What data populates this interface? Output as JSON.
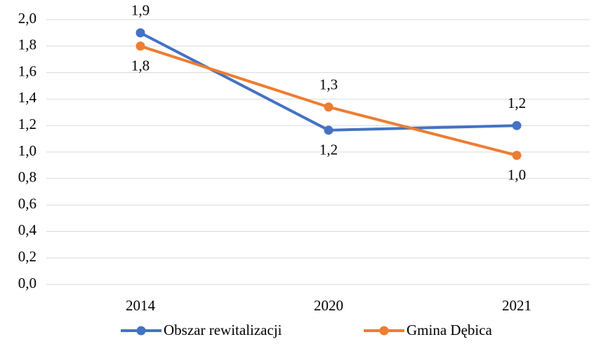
{
  "chart_data": {
    "type": "line",
    "categories": [
      "2014",
      "2020",
      "2021"
    ],
    "series": [
      {
        "name": "Obszar rewitalizacji",
        "color": "#4472c4",
        "values": [
          1.9,
          1.165,
          1.2
        ],
        "value_labels": [
          "1,9",
          "1,2",
          "1,2"
        ]
      },
      {
        "name": "Gmina Dębica",
        "color": "#ed7d31",
        "values": [
          1.8,
          1.34,
          0.975
        ],
        "value_labels": [
          "1,8",
          "1,3",
          "1,0"
        ]
      }
    ],
    "ylim": [
      0,
      2
    ],
    "yticks": [
      {
        "value": 0,
        "label": "0,0"
      },
      {
        "value": 0.2,
        "label": "0,2"
      },
      {
        "value": 0.4,
        "label": "0,4"
      },
      {
        "value": 0.6,
        "label": "0,6"
      },
      {
        "value": 0.8,
        "label": "0,8"
      },
      {
        "value": 1,
        "label": "1,0"
      },
      {
        "value": 1.2,
        "label": "1,2"
      },
      {
        "value": 1.4,
        "label": "1,4"
      },
      {
        "value": 1.6,
        "label": "1,6"
      },
      {
        "value": 1.8,
        "label": "1,8"
      },
      {
        "value": 2,
        "label": "2,0"
      }
    ],
    "grid": true,
    "legend": "bottom"
  }
}
